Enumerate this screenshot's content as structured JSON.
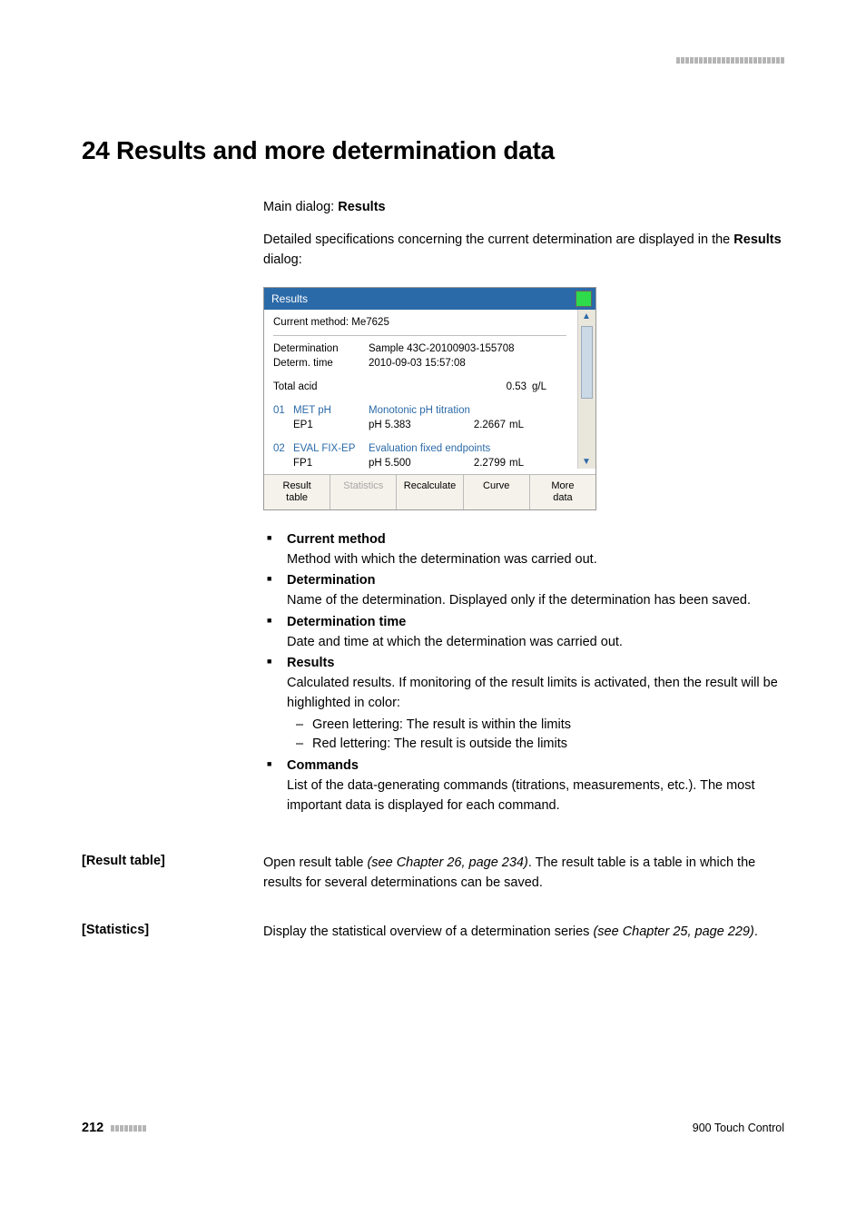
{
  "header_dot_count": 24,
  "chapter_title": "24 Results and more determination data",
  "main_dialog_prefix": "Main dialog: ",
  "main_dialog_value": "Results",
  "intro_text1": "Detailed specifications concerning the current determination are displayed in the ",
  "intro_bold": "Results",
  "intro_text2": " dialog:",
  "screenshot": {
    "titlebar": "Results",
    "current_method_label": "Current method: Me7625",
    "rows": [
      {
        "label": "Determination",
        "value": "Sample 43C-20100903-155708",
        "unit": ""
      },
      {
        "label": "Determ. time",
        "value": "2010-09-03 15:57:08",
        "unit": ""
      }
    ],
    "result_row": {
      "label": "Total acid",
      "value": "0.53",
      "unit": "g/L"
    },
    "commands": [
      {
        "idx": "01",
        "code": "MET pH",
        "desc": "Monotonic pH titration",
        "dat_lbl": "EP1",
        "dat_v1": "pH 5.383",
        "dat_v2": "2.2667",
        "dat_u": "mL"
      },
      {
        "idx": "02",
        "code": "EVAL FIX-EP",
        "desc": "Evaluation fixed endpoints",
        "dat_lbl": "FP1",
        "dat_v1": "pH 5.500",
        "dat_v2": "2.2799",
        "dat_u": "mL"
      }
    ],
    "buttons": [
      "Result\ntable",
      "Statistics",
      "Recalculate",
      "Curve",
      "More\ndata"
    ],
    "disabled_button_index": 1
  },
  "bullets": [
    {
      "title": "Current method",
      "desc": "Method with which the determination was carried out."
    },
    {
      "title": "Determination",
      "desc": "Name of the determination. Displayed only if the determination has been saved."
    },
    {
      "title": "Determination time",
      "desc": "Date and time at which the determination was carried out."
    },
    {
      "title": "Results",
      "desc": "Calculated results. If monitoring of the result limits is activated, then the result will be highlighted in color:",
      "sub": [
        "Green lettering: The result is within the limits",
        "Red lettering: The result is outside the limits"
      ]
    },
    {
      "title": "Commands",
      "desc": "List of the data-generating commands (titrations, measurements, etc.). The most important data is displayed for each command."
    }
  ],
  "defs": [
    {
      "label": "[Result table]",
      "body_pre": "Open result table ",
      "body_ital": "(see Chapter 26, page 234)",
      "body_post": ". The result table is a table in which the results for several determinations can be saved."
    },
    {
      "label": "[Statistics]",
      "body_pre": "Display the statistical overview of a determination series ",
      "body_ital": "(see Chapter 25, page 229)",
      "body_post": "."
    }
  ],
  "footer": {
    "page": "212",
    "dot_count": 8,
    "right": "900 Touch Control"
  }
}
